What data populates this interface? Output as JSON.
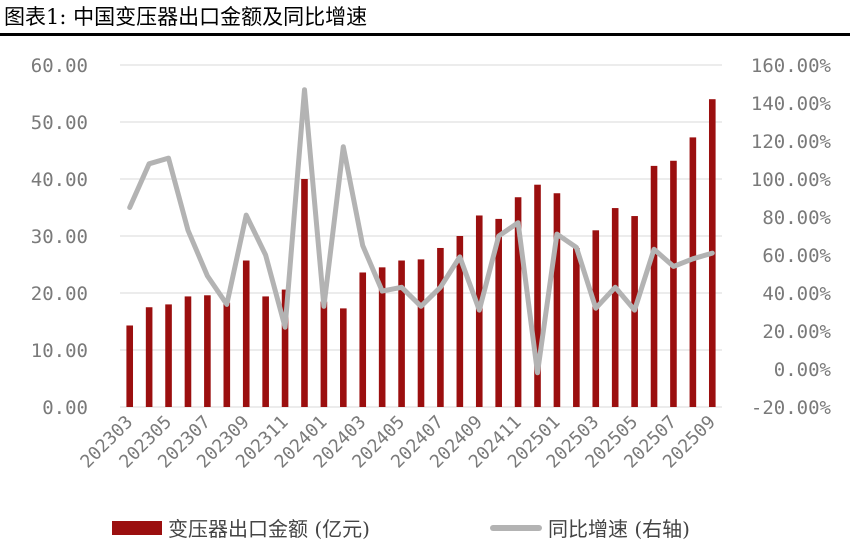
{
  "figure": {
    "title": "图表1:  中国变压器出口金额及同比增速"
  },
  "colors": {
    "bar": "#9b0f0f",
    "line": "#b3b3b3",
    "grid": "#d9d9d9",
    "tick_text": "#7a7a7a"
  },
  "legend": {
    "bar_label": "变压器出口金额 (亿元)",
    "line_label": "同比增速 (右轴)"
  },
  "chart_data": {
    "type": "bar",
    "legend_position": "bottom",
    "grid": true,
    "categories": [
      "202303",
      "202304",
      "202305",
      "202306",
      "202307",
      "202308",
      "202309",
      "202310",
      "202311",
      "202312",
      "202401",
      "202402",
      "202403",
      "202404",
      "202405",
      "202406",
      "202407",
      "202408",
      "202409",
      "202410",
      "202411",
      "202412",
      "202501",
      "202502",
      "202503",
      "202504",
      "202505",
      "202506",
      "202507",
      "202508",
      "202509"
    ],
    "x_tick_labels": [
      "202303",
      "202305",
      "202307",
      "202309",
      "202311",
      "202401",
      "202403",
      "202405",
      "202407",
      "202409",
      "202411",
      "202501",
      "202503",
      "202505",
      "202507",
      "202509"
    ],
    "y_left": {
      "range": [
        0,
        60
      ],
      "tick_labels": [
        "0.00",
        "10.00",
        "20.00",
        "30.00",
        "40.00",
        "50.00",
        "60.00"
      ]
    },
    "y_right": {
      "range": [
        -20,
        160
      ],
      "tick_labels": [
        "-20.00%",
        "0.00%",
        "20.00%",
        "40.00%",
        "60.00%",
        "80.00%",
        "100.00%",
        "120.00%",
        "140.00%",
        "160.00%"
      ]
    },
    "series": [
      {
        "name": "变压器出口金额 (亿元)",
        "type": "bar",
        "axis": "left",
        "values": [
          14.3,
          17.5,
          18.0,
          19.4,
          19.6,
          18.3,
          25.7,
          19.4,
          20.6,
          40.0,
          18.5,
          17.3,
          23.6,
          24.5,
          25.7,
          25.9,
          27.9,
          30.0,
          33.6,
          33.0,
          36.8,
          39.0,
          37.5,
          27.9,
          31.0,
          34.9,
          33.5,
          42.3,
          43.2,
          47.3,
          54.0
        ]
      },
      {
        "name": "同比增速 (右轴)",
        "type": "line",
        "axis": "right",
        "values": [
          85,
          108,
          111,
          73,
          49,
          34,
          81,
          60,
          22,
          147,
          33,
          117,
          65,
          41,
          43,
          33,
          43,
          59,
          31,
          70,
          77,
          -2,
          71,
          64,
          32,
          43,
          31,
          63,
          54,
          58,
          61
        ]
      }
    ]
  }
}
